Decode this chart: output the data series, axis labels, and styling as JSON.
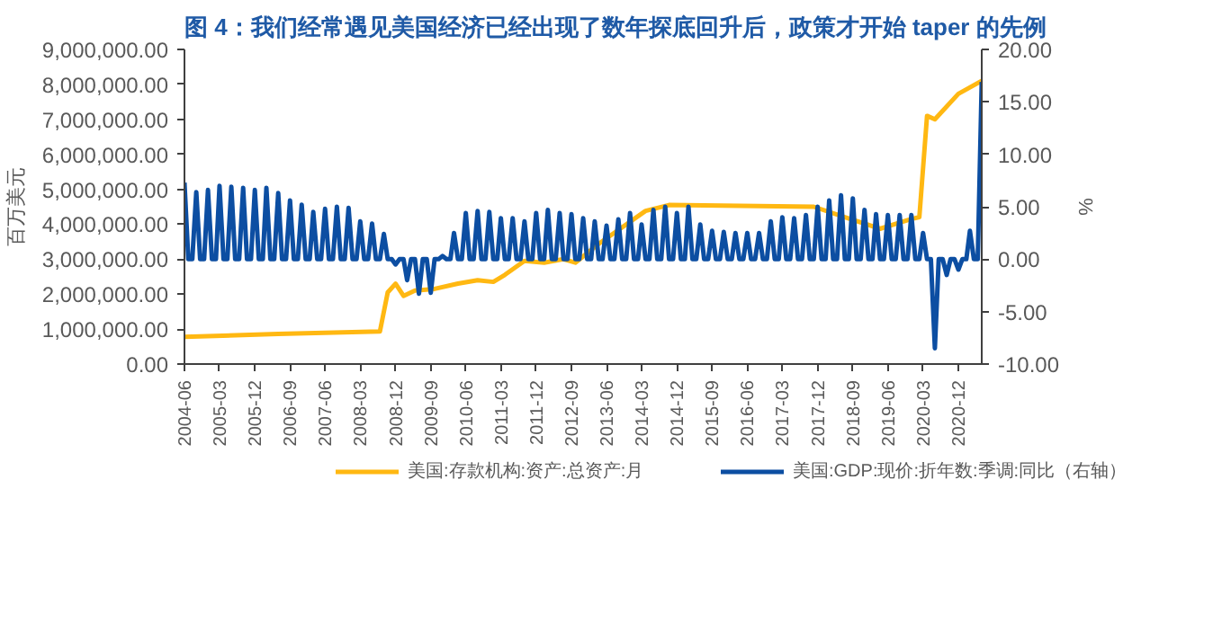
{
  "chart_data": {
    "type": "line",
    "title": "图 4：我们经常遇见美国经济已经出现了数年探底回升后，政策才开始 taper 的先例",
    "ylabel": "百万美元",
    "y2label": "%",
    "legend": "bottom",
    "grid": false,
    "xlim": [
      "2004-06",
      "2021-06"
    ],
    "xticks": [
      "2004-06",
      "2005-03",
      "2005-12",
      "2006-09",
      "2007-06",
      "2008-03",
      "2008-12",
      "2009-09",
      "2010-06",
      "2011-03",
      "2011-12",
      "2012-09",
      "2013-06",
      "2014-03",
      "2014-12",
      "2015-09",
      "2016-06",
      "2017-03",
      "2017-12",
      "2018-09",
      "2019-06",
      "2020-03",
      "2020-12"
    ],
    "ylim": [
      0,
      9000000
    ],
    "yticks": [
      {
        "value": 0,
        "label": "0.00"
      },
      {
        "value": 1000000,
        "label": "1,000,000.00"
      },
      {
        "value": 2000000,
        "label": "2,000,000.00"
      },
      {
        "value": 3000000,
        "label": "3,000,000.00"
      },
      {
        "value": 4000000,
        "label": "4,000,000.00"
      },
      {
        "value": 5000000,
        "label": "5,000,000.00"
      },
      {
        "value": 6000000,
        "label": "6,000,000.00"
      },
      {
        "value": 7000000,
        "label": "7,000,000.00"
      },
      {
        "value": 8000000,
        "label": "8,000,000.00"
      },
      {
        "value": 9000000,
        "label": "9,000,000.00"
      }
    ],
    "y2lim": [
      -10,
      20
    ],
    "y2ticks": [
      {
        "value": -10,
        "label": "-10.00"
      },
      {
        "value": -5,
        "label": "-5.00"
      },
      {
        "value": 0,
        "label": "0.00"
      },
      {
        "value": 5,
        "label": "5.00"
      },
      {
        "value": 10,
        "label": "10.00"
      },
      {
        "value": 15,
        "label": "15.00"
      },
      {
        "value": 20,
        "label": "20.00"
      }
    ],
    "series": [
      {
        "name": "美国:存款机构:资产:总资产:月",
        "color": "#ffb812",
        "x": [
          "2004-06",
          "2006-06",
          "2008-08",
          "2008-10",
          "2008-12",
          "2009-02",
          "2009-05",
          "2009-10",
          "2010-04",
          "2010-09",
          "2011-01",
          "2011-04",
          "2011-09",
          "2012-02",
          "2012-07",
          "2012-10",
          "2013-04",
          "2014-04",
          "2014-10",
          "2017-11",
          "2018-07",
          "2019-04",
          "2019-12",
          "2020-02",
          "2020-04",
          "2020-06",
          "2020-12",
          "2021-06"
        ],
        "values": [
          780000,
          860000,
          930000,
          2050000,
          2300000,
          1950000,
          2100000,
          2150000,
          2300000,
          2400000,
          2350000,
          2550000,
          2950000,
          2900000,
          3000000,
          2900000,
          3440000,
          4380000,
          4550000,
          4500000,
          4200000,
          3870000,
          4150000,
          4200000,
          7100000,
          7000000,
          7730000,
          8100000
        ]
      },
      {
        "name": "美国:GDP:现价:折年数:季调:同比（右轴）",
        "color": "#0c4ea2",
        "axis": "y2",
        "x": [
          "2004-06",
          "2004-07",
          "2004-08",
          "2004-09",
          "2004-10",
          "2004-11",
          "2004-12",
          "2005-01",
          "2005-02",
          "2005-03",
          "2005-04",
          "2005-05",
          "2005-06",
          "2005-07",
          "2005-08",
          "2005-09",
          "2005-10",
          "2005-11",
          "2005-12",
          "2006-01",
          "2006-02",
          "2006-03",
          "2006-04",
          "2006-05",
          "2006-06",
          "2006-07",
          "2006-08",
          "2006-09",
          "2006-10",
          "2006-11",
          "2006-12",
          "2007-01",
          "2007-02",
          "2007-03",
          "2007-04",
          "2007-05",
          "2007-06",
          "2007-07",
          "2007-08",
          "2007-09",
          "2007-10",
          "2007-11",
          "2007-12",
          "2008-01",
          "2008-02",
          "2008-03",
          "2008-04",
          "2008-05",
          "2008-06",
          "2008-07",
          "2008-08",
          "2008-09",
          "2008-10",
          "2008-11",
          "2008-12",
          "2009-01",
          "2009-02",
          "2009-03",
          "2009-04",
          "2009-05",
          "2009-06",
          "2009-07",
          "2009-08",
          "2009-09",
          "2009-10",
          "2009-11",
          "2009-12",
          "2010-01",
          "2010-02",
          "2010-03",
          "2010-04",
          "2010-05",
          "2010-06",
          "2010-07",
          "2010-08",
          "2010-09",
          "2010-10",
          "2010-11",
          "2010-12",
          "2011-01",
          "2011-02",
          "2011-03",
          "2011-04",
          "2011-05",
          "2011-06",
          "2011-07",
          "2011-08",
          "2011-09",
          "2011-10",
          "2011-11",
          "2011-12",
          "2012-01",
          "2012-02",
          "2012-03",
          "2012-04",
          "2012-05",
          "2012-06",
          "2012-07",
          "2012-08",
          "2012-09",
          "2012-10",
          "2012-11",
          "2012-12",
          "2013-01",
          "2013-02",
          "2013-03",
          "2013-04",
          "2013-05",
          "2013-06",
          "2013-07",
          "2013-08",
          "2013-09",
          "2013-10",
          "2013-11",
          "2013-12",
          "2014-01",
          "2014-02",
          "2014-03",
          "2014-04",
          "2014-05",
          "2014-06",
          "2014-07",
          "2014-08",
          "2014-09",
          "2014-10",
          "2014-11",
          "2014-12",
          "2015-01",
          "2015-02",
          "2015-03",
          "2015-04",
          "2015-05",
          "2015-06",
          "2015-07",
          "2015-08",
          "2015-09",
          "2015-10",
          "2015-11",
          "2015-12",
          "2016-01",
          "2016-02",
          "2016-03",
          "2016-04",
          "2016-05",
          "2016-06",
          "2016-07",
          "2016-08",
          "2016-09",
          "2016-10",
          "2016-11",
          "2016-12",
          "2017-01",
          "2017-02",
          "2017-03",
          "2017-04",
          "2017-05",
          "2017-06",
          "2017-07",
          "2017-08",
          "2017-09",
          "2017-10",
          "2017-11",
          "2017-12",
          "2018-01",
          "2018-02",
          "2018-03",
          "2018-04",
          "2018-05",
          "2018-06",
          "2018-07",
          "2018-08",
          "2018-09",
          "2018-10",
          "2018-11",
          "2018-12",
          "2019-01",
          "2019-02",
          "2019-03",
          "2019-04",
          "2019-05",
          "2019-06",
          "2019-07",
          "2019-08",
          "2019-09",
          "2019-10",
          "2019-11",
          "2019-12",
          "2020-01",
          "2020-02",
          "2020-03",
          "2020-04",
          "2020-05",
          "2020-06",
          "2020-07",
          "2020-08",
          "2020-09",
          "2020-10",
          "2020-11",
          "2020-12",
          "2021-01",
          "2021-02",
          "2021-03",
          "2021-04",
          "2021-05",
          "2021-06"
        ],
        "values": [
          7.3,
          0,
          0,
          6.4,
          0,
          0,
          6.6,
          0,
          0,
          7.0,
          0,
          0,
          6.9,
          0,
          0,
          6.8,
          0,
          0,
          6.6,
          0,
          0,
          6.8,
          0,
          0,
          6.3,
          0,
          0,
          5.6,
          0,
          0,
          5.2,
          0,
          0,
          4.5,
          0,
          0,
          4.8,
          0,
          0,
          5.0,
          0,
          0,
          4.9,
          0,
          0,
          3.6,
          0,
          0,
          3.4,
          0,
          0,
          2.4,
          0,
          0,
          -0.5,
          0,
          0,
          -2.0,
          0,
          0,
          -3.3,
          0,
          0,
          -3.2,
          0,
          0,
          0.3,
          0,
          0,
          2.5,
          0,
          0,
          4.4,
          0,
          0,
          4.6,
          0,
          0,
          4.5,
          0,
          0,
          3.9,
          0,
          0,
          3.9,
          0,
          0,
          3.6,
          0,
          0,
          4.4,
          0,
          0,
          4.7,
          0,
          0,
          4.4,
          0,
          0,
          4.3,
          0,
          0,
          3.9,
          0,
          0,
          3.6,
          0,
          0,
          3.2,
          0,
          0,
          3.8,
          0,
          0,
          4.4,
          0,
          0,
          3.3,
          0,
          0,
          4.7,
          0,
          0,
          5.0,
          0,
          0,
          4.4,
          0,
          0,
          5.0,
          0,
          0,
          3.3,
          0,
          0,
          2.7,
          0,
          0,
          2.6,
          0,
          0,
          2.5,
          0,
          0,
          2.5,
          0,
          0,
          2.5,
          0,
          0,
          3.6,
          0,
          0,
          4.0,
          0,
          0,
          3.9,
          0,
          0,
          4.2,
          0,
          0,
          5.0,
          0,
          0,
          5.6,
          0,
          0,
          6.1,
          0,
          0,
          5.8,
          0,
          0,
          4.7,
          0,
          0,
          4.3,
          0,
          0,
          4.2,
          0,
          0,
          4.2,
          0,
          0,
          4.2,
          0,
          0,
          2.5,
          0,
          0,
          -8.5,
          0,
          0,
          -1.5,
          0,
          0,
          -1.0,
          0,
          0,
          2.7,
          0,
          0,
          16.9
        ]
      }
    ]
  }
}
